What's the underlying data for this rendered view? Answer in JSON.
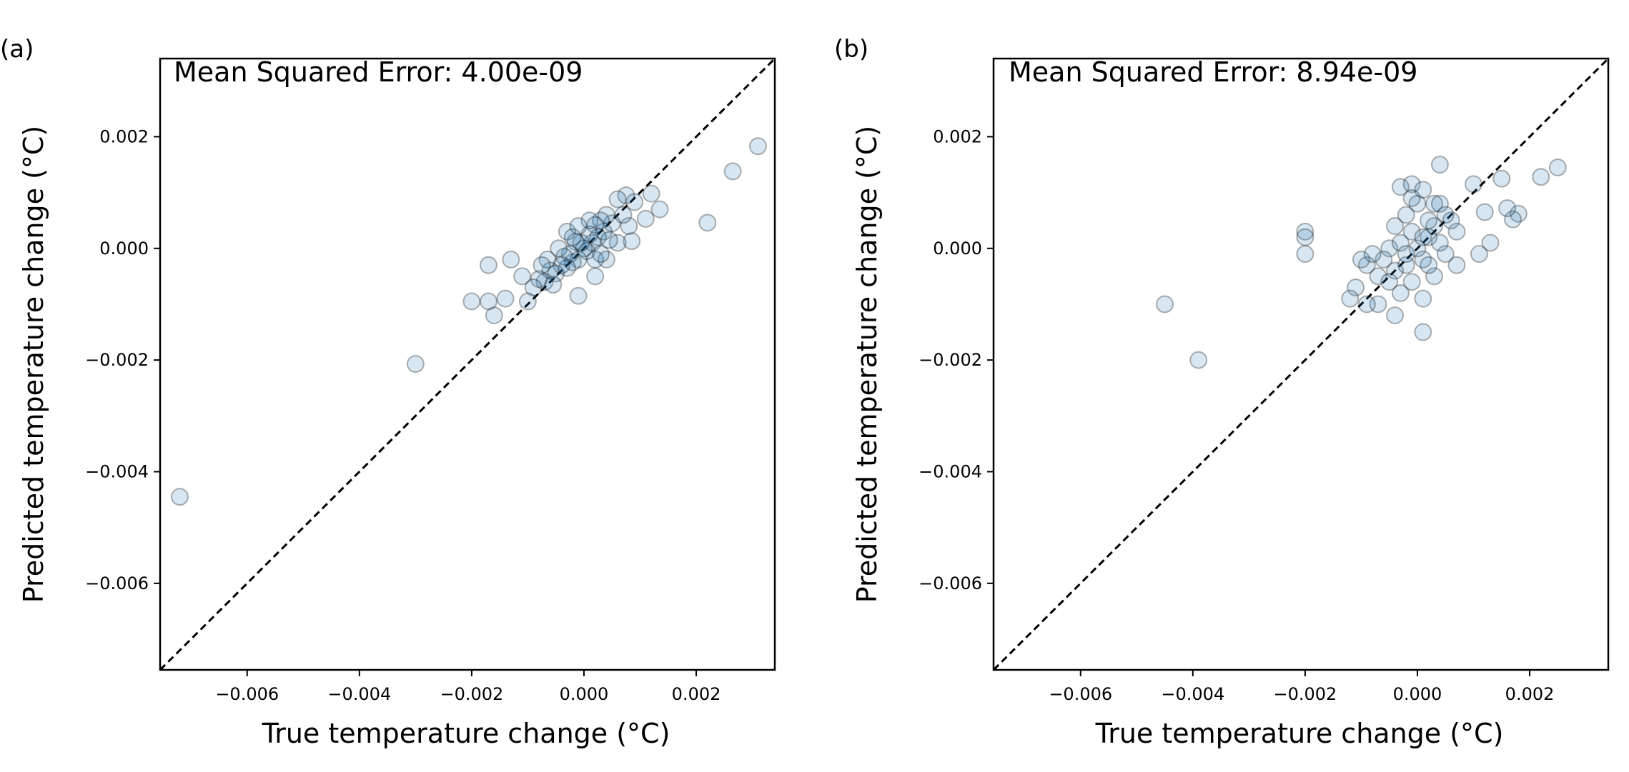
{
  "chart_data": [
    {
      "type": "scatter",
      "panel_label": "(a)",
      "annotation": "Mean Squared Error: 4.00e-09",
      "xlabel": "True temperature change (°C)",
      "ylabel": "Predicted temperature change (°C)",
      "xlim": [
        -0.00755,
        0.0034
      ],
      "ylim": [
        -0.00755,
        0.0034
      ],
      "xticks": [
        -0.006,
        -0.004,
        -0.002,
        0.0,
        0.002
      ],
      "yticks": [
        -0.006,
        -0.004,
        -0.002,
        0.0,
        0.002
      ],
      "xtick_labels": [
        "−0.006",
        "−0.004",
        "−0.002",
        "0.000",
        "0.002"
      ],
      "ytick_labels": [
        "−0.006",
        "−0.004",
        "−0.002",
        "0.000",
        "0.002"
      ],
      "reference_line": "y = x",
      "grid": false,
      "marker_color": "#1f77b4",
      "points": [
        [
          -0.0072,
          -0.00445
        ],
        [
          -0.003,
          -0.00207
        ],
        [
          0.0031,
          0.00183
        ],
        [
          0.00265,
          0.00138
        ],
        [
          0.0022,
          0.00046
        ],
        [
          0.00135,
          0.0007
        ],
        [
          0.0012,
          0.00098
        ],
        [
          0.0011,
          0.00053
        ],
        [
          0.0009,
          0.00083
        ],
        [
          0.00085,
          0.00013
        ],
        [
          0.00075,
          0.00095
        ],
        [
          0.0006,
          0.00088
        ],
        [
          0.0005,
          0.00045
        ],
        [
          0.0004,
          0.0006
        ],
        [
          0.00035,
          0.0003
        ],
        [
          0.0003,
          0.0005
        ],
        [
          0.00025,
          0.0002
        ],
        [
          0.0002,
          0.00042
        ],
        [
          0.00015,
          0.0001
        ],
        [
          0.0001,
          0.00025
        ],
        [
          5e-05,
          -5e-05
        ],
        [
          0.0,
          0.0
        ],
        [
          -5e-05,
          0.0001
        ],
        [
          -0.0001,
          -0.0002
        ],
        [
          -0.00015,
          0.00012
        ],
        [
          -0.0002,
          -0.00025
        ],
        [
          -0.00025,
          -0.0001
        ],
        [
          -0.0003,
          -0.00035
        ],
        [
          -0.00035,
          -0.00015
        ],
        [
          -0.0004,
          -0.0003
        ],
        [
          -0.00045,
          0.0
        ],
        [
          -0.0005,
          -0.00045
        ],
        [
          -0.0006,
          -0.0004
        ],
        [
          -0.00065,
          -0.0002
        ],
        [
          -0.0007,
          -0.0006
        ],
        [
          -0.0008,
          -0.00055
        ],
        [
          -0.0009,
          -0.0007
        ],
        [
          -0.001,
          -0.00095
        ],
        [
          -0.0011,
          -0.0005
        ],
        [
          -0.0013,
          -0.0002
        ],
        [
          -0.0014,
          -0.0009
        ],
        [
          -0.0016,
          -0.0012
        ],
        [
          -0.0017,
          -0.00095
        ],
        [
          -0.0017,
          -0.0003
        ],
        [
          -0.002,
          -0.00095
        ],
        [
          -0.0001,
          -0.00085
        ],
        [
          0.0002,
          -0.0005
        ],
        [
          0.0004,
          -0.0002
        ],
        [
          0.0006,
          0.0001
        ],
        [
          0.0008,
          0.0004
        ],
        [
          0.0001,
          0.0005
        ],
        [
          -0.0003,
          0.0003
        ],
        [
          0.0002,
          -0.0002
        ],
        [
          -0.0002,
          0.0002
        ],
        [
          0.00045,
          0.00015
        ],
        [
          0.0007,
          0.0006
        ],
        [
          -0.00055,
          -0.00065
        ],
        [
          -0.00075,
          -0.0003
        ],
        [
          0.0003,
          -0.0001
        ],
        [
          -0.0001,
          0.0004
        ]
      ]
    },
    {
      "type": "scatter",
      "panel_label": "(b)",
      "annotation": "Mean Squared Error: 8.94e-09",
      "xlabel": "True temperature change (°C)",
      "ylabel": "Predicted temperature change (°C)",
      "xlim": [
        -0.00755,
        0.0034
      ],
      "ylim": [
        -0.00755,
        0.0034
      ],
      "xticks": [
        -0.006,
        -0.004,
        -0.002,
        0.0,
        0.002
      ],
      "yticks": [
        -0.006,
        -0.004,
        -0.002,
        0.0,
        0.002
      ],
      "xtick_labels": [
        "−0.006",
        "−0.004",
        "−0.002",
        "0.000",
        "0.002"
      ],
      "ytick_labels": [
        "−0.006",
        "−0.004",
        "−0.002",
        "0.000",
        "0.002"
      ],
      "reference_line": "y = x",
      "grid": false,
      "marker_color": "#1f77b4",
      "points": [
        [
          -0.0045,
          -0.001
        ],
        [
          -0.0039,
          -0.002
        ],
        [
          -0.002,
          0.0003
        ],
        [
          -0.002,
          0.0002
        ],
        [
          -0.002,
          -0.0001
        ],
        [
          0.0025,
          0.00145
        ],
        [
          0.0022,
          0.00128
        ],
        [
          0.0018,
          0.00062
        ],
        [
          0.0017,
          0.00052
        ],
        [
          0.0016,
          0.00072
        ],
        [
          0.0015,
          0.00125
        ],
        [
          0.0013,
          0.0001
        ],
        [
          0.0012,
          0.00065
        ],
        [
          0.0011,
          -0.0001
        ],
        [
          0.001,
          0.00115
        ],
        [
          0.0004,
          0.0015
        ],
        [
          0.0001,
          -0.0015
        ],
        [
          -0.0004,
          -0.0012
        ],
        [
          -0.0007,
          -0.001
        ],
        [
          -0.0009,
          -0.001
        ],
        [
          -0.0011,
          -0.0007
        ],
        [
          -0.0012,
          -0.0009
        ],
        [
          -0.0009,
          -0.0003
        ],
        [
          -0.001,
          -0.0002
        ],
        [
          -0.0007,
          -0.0005
        ],
        [
          -0.0005,
          0.0
        ],
        [
          -0.0003,
          0.0011
        ],
        [
          -0.0001,
          0.00115
        ],
        [
          0.0001,
          0.00105
        ],
        [
          0.0003,
          0.0008
        ],
        [
          0.0005,
          0.0006
        ],
        [
          0.0007,
          0.0003
        ],
        [
          0.0007,
          -0.0003
        ],
        [
          0.0005,
          -0.0001
        ],
        [
          0.0003,
          0.0004
        ],
        [
          0.0002,
          0.0002
        ],
        [
          0.0001,
          -0.0002
        ],
        [
          0.0,
          0.0
        ],
        [
          -0.0001,
          0.0003
        ],
        [
          -0.0002,
          -0.0003
        ],
        [
          -0.0003,
          0.0001
        ],
        [
          -0.0004,
          -0.0004
        ],
        [
          -0.0005,
          -0.0006
        ],
        [
          -0.0006,
          -0.0002
        ],
        [
          -0.0002,
          0.0006
        ],
        [
          0.0002,
          0.0005
        ],
        [
          0.0004,
          0.0001
        ],
        [
          -0.0001,
          -0.0006
        ],
        [
          0.0001,
          -0.0009
        ],
        [
          -0.0003,
          -0.0008
        ],
        [
          0.0006,
          0.0005
        ],
        [
          -0.0008,
          -0.0001
        ],
        [
          0.0,
          0.0008
        ],
        [
          0.0003,
          -0.0005
        ],
        [
          -0.0001,
          0.0009
        ],
        [
          0.0004,
          0.0008
        ],
        [
          -0.0004,
          0.0004
        ],
        [
          0.0002,
          -0.0003
        ],
        [
          -0.0002,
          -0.0001
        ],
        [
          0.0001,
          0.0002
        ]
      ]
    }
  ]
}
